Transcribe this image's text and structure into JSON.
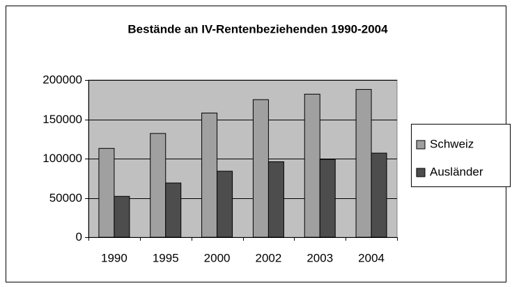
{
  "chart_data": {
    "type": "bar",
    "title": "Bestände an IV-Rentenbeziehenden 1990-2004",
    "categories": [
      "1990",
      "1995",
      "2000",
      "2002",
      "2003",
      "2004"
    ],
    "series": [
      {
        "name": "Schweiz",
        "color": "#a0a0a0",
        "values": [
          113000,
          132000,
          158000,
          175000,
          182000,
          188000
        ]
      },
      {
        "name": "Ausländer",
        "color": "#4d4d4d",
        "values": [
          52000,
          69000,
          84000,
          96000,
          99000,
          107000
        ]
      }
    ],
    "ylim": [
      0,
      200000
    ],
    "yticks": [
      0,
      50000,
      100000,
      150000,
      200000
    ],
    "grid": true,
    "legend": "right",
    "plot_background": "#c0c0c0"
  }
}
